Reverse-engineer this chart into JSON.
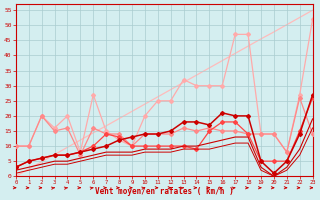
{
  "xlabel": "Vent moyen/en rafales ( km/h )",
  "bg_color": "#d4eef0",
  "x": [
    0,
    1,
    2,
    3,
    4,
    5,
    6,
    7,
    8,
    9,
    10,
    11,
    12,
    13,
    14,
    15,
    16,
    17,
    18,
    19,
    20,
    21,
    22,
    23
  ],
  "lines": [
    {
      "y": [
        0,
        2.4,
        4.8,
        7.2,
        9.6,
        12.0,
        14.4,
        16.7,
        19.1,
        21.5,
        23.9,
        26.3,
        28.7,
        31.1,
        33.5,
        35.9,
        38.3,
        40.7,
        43.1,
        45.5,
        47.8,
        50.2,
        52.6,
        55.0
      ],
      "color": "#ffbbbb",
      "lw": 0.9,
      "marker": null,
      "zorder": 1
    },
    {
      "y": [
        10,
        10,
        20,
        16,
        20,
        8,
        27,
        15,
        12,
        10,
        20,
        25,
        25,
        32,
        30,
        30,
        30,
        47,
        47,
        14,
        14,
        8,
        27,
        52
      ],
      "color": "#ffaaaa",
      "lw": 0.9,
      "marker": "D",
      "ms": 2.0,
      "zorder": 2
    },
    {
      "y": [
        10,
        10,
        20,
        15,
        16,
        7,
        16,
        14,
        14,
        10,
        14,
        14,
        14,
        16,
        15,
        16,
        15,
        15,
        14,
        14,
        14,
        8,
        26,
        14
      ],
      "color": "#ff8888",
      "lw": 0.9,
      "marker": "D",
      "ms": 2.0,
      "zorder": 3
    },
    {
      "y": [
        3,
        5,
        6,
        7,
        7,
        8,
        10,
        14,
        13,
        10,
        10,
        10,
        10,
        10,
        9,
        15,
        18,
        18,
        14,
        5,
        5,
        5,
        15,
        26
      ],
      "color": "#ff4444",
      "lw": 0.9,
      "marker": "D",
      "ms": 2.0,
      "zorder": 4
    },
    {
      "y": [
        3,
        5,
        6,
        7,
        7,
        8,
        9,
        10,
        12,
        13,
        14,
        14,
        15,
        18,
        18,
        17,
        21,
        20,
        20,
        5,
        1,
        5,
        14,
        27
      ],
      "color": "#cc0000",
      "lw": 1.1,
      "marker": "D",
      "ms": 2.0,
      "zorder": 6
    },
    {
      "y": [
        2,
        3,
        4,
        5,
        5,
        6,
        7,
        8,
        8,
        8,
        9,
        9,
        9,
        10,
        10,
        11,
        12,
        13,
        13,
        3,
        0,
        3,
        9,
        19
      ],
      "color": "#cc0000",
      "lw": 0.8,
      "marker": null,
      "zorder": 5
    },
    {
      "y": [
        1,
        2,
        3,
        4,
        4,
        5,
        6,
        7,
        7,
        7,
        8,
        8,
        8,
        9,
        9,
        9,
        10,
        11,
        11,
        2,
        0,
        2,
        7,
        16
      ],
      "color": "#cc0000",
      "lw": 0.7,
      "marker": null,
      "zorder": 5
    }
  ],
  "wind_arrows": [
    [
      0,
      0
    ],
    [
      1,
      0
    ],
    [
      2,
      0
    ],
    [
      3,
      30
    ],
    [
      4,
      30
    ],
    [
      5,
      0
    ],
    [
      6,
      30
    ],
    [
      7,
      0
    ],
    [
      8,
      0
    ],
    [
      9,
      0
    ],
    [
      10,
      30
    ],
    [
      11,
      0
    ],
    [
      12,
      0
    ],
    [
      13,
      30
    ],
    [
      14,
      0
    ],
    [
      15,
      0
    ],
    [
      16,
      30
    ],
    [
      17,
      30
    ],
    [
      18,
      0
    ],
    [
      19,
      0
    ],
    [
      20,
      0
    ],
    [
      21,
      0
    ],
    [
      22,
      0
    ],
    [
      23,
      0
    ]
  ],
  "ylim": [
    0,
    57
  ],
  "xlim": [
    0,
    23
  ],
  "yticks": [
    0,
    5,
    10,
    15,
    20,
    25,
    30,
    35,
    40,
    45,
    50,
    55
  ],
  "xticks": [
    0,
    1,
    2,
    3,
    4,
    5,
    6,
    7,
    8,
    9,
    10,
    11,
    12,
    13,
    14,
    15,
    16,
    17,
    18,
    19,
    20,
    21,
    22,
    23
  ],
  "grid_color": "#aaccd0",
  "tick_color": "#cc0000",
  "label_color": "#cc0000",
  "spine_color": "#cc0000"
}
